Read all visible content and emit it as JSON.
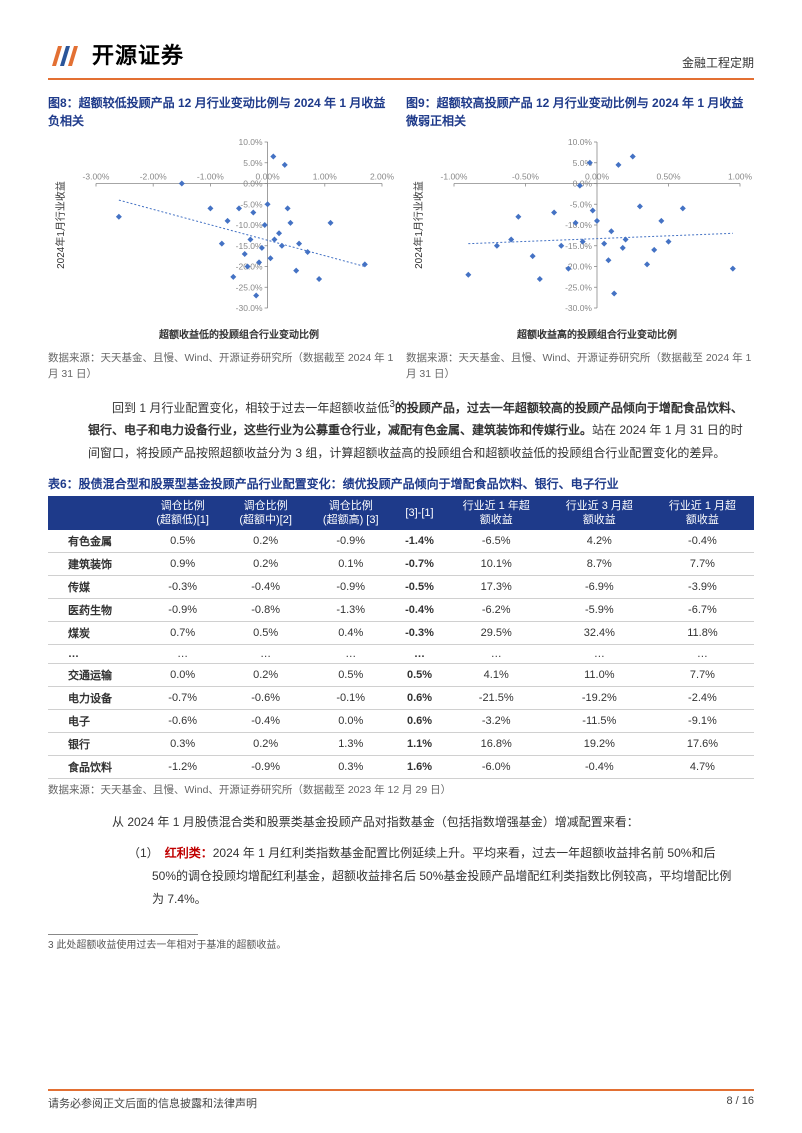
{
  "header": {
    "logo_text": "开源证券",
    "right_text": "金融工程定期"
  },
  "chart_left": {
    "title": "图8：超额较低投顾产品 12 月行业变动比例与 2024 年 1 月收益负相关",
    "type": "scatter",
    "xlabel": "超额收益低的投顾组合行业变动比例",
    "ylabel": "2024年1月行业收益",
    "xlim": [
      -3.0,
      2.0
    ],
    "ylim": [
      -30.0,
      10.0
    ],
    "xticks": [
      -3.0,
      -2.0,
      -1.0,
      0.0,
      1.0,
      2.0
    ],
    "xtick_labels": [
      "-3.00%",
      "-2.00%",
      "-1.00%",
      "0.00%",
      "1.00%",
      "2.00%"
    ],
    "yticks": [
      -30,
      -25,
      -20,
      -15,
      -10,
      -5,
      0,
      5,
      10
    ],
    "ytick_labels": [
      "-30.0%",
      "-25.0%",
      "-20.0%",
      "-15.0%",
      "-10.0%",
      "-5.0%",
      "0.0%",
      "5.0%",
      "10.0%"
    ],
    "marker_color": "#4472c4",
    "trend_color": "#4472c4",
    "trend": [
      [
        -2.6,
        -4.0
      ],
      [
        1.7,
        -20.0
      ]
    ],
    "tick_label_color": "#888888",
    "points": [
      [
        -2.6,
        -8.0
      ],
      [
        -1.5,
        0.0
      ],
      [
        -1.0,
        -6.0
      ],
      [
        -0.8,
        -14.5
      ],
      [
        -0.7,
        -9.0
      ],
      [
        -0.6,
        -22.5
      ],
      [
        -0.5,
        -6.0
      ],
      [
        -0.4,
        -17.0
      ],
      [
        -0.35,
        -20.0
      ],
      [
        -0.3,
        -13.5
      ],
      [
        -0.25,
        -7.0
      ],
      [
        -0.2,
        -27.0
      ],
      [
        -0.15,
        -19.0
      ],
      [
        -0.1,
        -15.5
      ],
      [
        -0.05,
        -10.0
      ],
      [
        0.0,
        -5.0
      ],
      [
        0.05,
        -18.0
      ],
      [
        0.1,
        6.5
      ],
      [
        0.12,
        -13.5
      ],
      [
        0.2,
        -12.0
      ],
      [
        0.25,
        -15.0
      ],
      [
        0.3,
        4.5
      ],
      [
        0.35,
        -6.0
      ],
      [
        0.4,
        -9.5
      ],
      [
        0.5,
        -21.0
      ],
      [
        0.55,
        -14.5
      ],
      [
        0.7,
        -16.5
      ],
      [
        0.9,
        -23.0
      ],
      [
        1.1,
        -9.5
      ],
      [
        1.7,
        -19.5
      ]
    ],
    "source": "数据来源：天天基金、且慢、Wind、开源证券研究所（数据截至 2024 年 1 月 31 日）"
  },
  "chart_right": {
    "title": "图9：超额较高投顾产品 12 月行业变动比例与 2024 年 1 月收益微弱正相关",
    "type": "scatter",
    "xlabel": "超额收益高的投顾组合行业变动比例",
    "ylabel": "2024年1月行业收益",
    "xlim": [
      -1.0,
      1.0
    ],
    "ylim": [
      -30.0,
      10.0
    ],
    "xticks": [
      -1.0,
      -0.5,
      0.0,
      0.5,
      1.0
    ],
    "xtick_labels": [
      "-1.00%",
      "-0.50%",
      "0.00%",
      "0.50%",
      "1.00%"
    ],
    "yticks": [
      -30,
      -25,
      -20,
      -15,
      -10,
      -5,
      0,
      5,
      10
    ],
    "ytick_labels": [
      "-30.0%",
      "-25.0%",
      "-20.0%",
      "-15.0%",
      "-10.0%",
      "-5.0%",
      "0.0%",
      "5.0%",
      "10.0%"
    ],
    "marker_color": "#4472c4",
    "trend_color": "#4472c4",
    "trend": [
      [
        -0.9,
        -14.5
      ],
      [
        0.95,
        -12.0
      ]
    ],
    "tick_label_color": "#888888",
    "points": [
      [
        -0.9,
        -22.0
      ],
      [
        -0.7,
        -15.0
      ],
      [
        -0.6,
        -13.5
      ],
      [
        -0.55,
        -8.0
      ],
      [
        -0.45,
        -17.5
      ],
      [
        -0.4,
        -23.0
      ],
      [
        -0.3,
        -7.0
      ],
      [
        -0.25,
        -15.0
      ],
      [
        -0.2,
        -20.5
      ],
      [
        -0.15,
        -9.5
      ],
      [
        -0.12,
        -0.5
      ],
      [
        -0.1,
        -14.0
      ],
      [
        -0.05,
        5.0
      ],
      [
        -0.03,
        -6.5
      ],
      [
        0.0,
        -9.0
      ],
      [
        0.05,
        -14.5
      ],
      [
        0.08,
        -18.5
      ],
      [
        0.1,
        -11.5
      ],
      [
        0.12,
        -26.5
      ],
      [
        0.15,
        4.5
      ],
      [
        0.18,
        -15.5
      ],
      [
        0.2,
        -13.5
      ],
      [
        0.25,
        6.5
      ],
      [
        0.3,
        -5.5
      ],
      [
        0.35,
        -19.5
      ],
      [
        0.4,
        -16.0
      ],
      [
        0.45,
        -9.0
      ],
      [
        0.5,
        -14.0
      ],
      [
        0.6,
        -6.0
      ],
      [
        0.95,
        -20.5
      ]
    ],
    "source": "数据来源：天天基金、且慢、Wind、开源证券研究所（数据截至 2024 年 1 月 31 日）"
  },
  "body_para_1_pre": "回到 1 月行业配置变化，相较于过去一年超额收益低",
  "body_para_1_sup": "3",
  "body_para_1_mid": "的投顾产品，过去一年超额较高的投顾产品倾向于增配食品饮料、银行、电子和电力设备行业，这些行业为公募重仓行业，减配有色金属、建筑装饰和传媒行业。",
  "body_para_1_tail": "站在 2024 年 1 月 31 日的时间窗口，将投顾产品按照超额收益分为 3 组，计算超额收益高的投顾组合和超额收益低的投顾组合行业配置变化的差异。",
  "table": {
    "title": "表6：股债混合型和股票型基金投顾产品行业配置变化：绩优投顾产品倾向于增配食品饮料、银行、电子行业",
    "header_bg": "#1e3a8a",
    "header_color": "#ffffff",
    "columns": [
      "",
      "调仓比例(超额低)[1]",
      "调仓比例(超额中)[2]",
      "调仓比例(超额高) [3]",
      "[3]-[1]",
      "行业近 1 年超额收益",
      "行业近 3 月超额收益",
      "行业近 1 月超额收益"
    ],
    "rows": [
      [
        "有色金属",
        "0.5%",
        "0.2%",
        "-0.9%",
        "-1.4%",
        "-6.5%",
        "4.2%",
        "-0.4%"
      ],
      [
        "建筑装饰",
        "0.9%",
        "0.2%",
        "0.1%",
        "-0.7%",
        "10.1%",
        "8.7%",
        "7.7%"
      ],
      [
        "传媒",
        "-0.3%",
        "-0.4%",
        "-0.9%",
        "-0.5%",
        "17.3%",
        "-6.9%",
        "-3.9%"
      ],
      [
        "医药生物",
        "-0.9%",
        "-0.8%",
        "-1.3%",
        "-0.4%",
        "-6.2%",
        "-5.9%",
        "-6.7%"
      ],
      [
        "煤炭",
        "0.7%",
        "0.5%",
        "0.4%",
        "-0.3%",
        "29.5%",
        "32.4%",
        "11.8%"
      ],
      [
        "…",
        "…",
        "…",
        "…",
        "…",
        "…",
        "…",
        "…"
      ],
      [
        "交通运输",
        "0.0%",
        "0.2%",
        "0.5%",
        "0.5%",
        "4.1%",
        "11.0%",
        "7.7%"
      ],
      [
        "电力设备",
        "-0.7%",
        "-0.6%",
        "-0.1%",
        "0.6%",
        "-21.5%",
        "-19.2%",
        "-2.4%"
      ],
      [
        "电子",
        "-0.6%",
        "-0.4%",
        "0.0%",
        "0.6%",
        "-3.2%",
        "-11.5%",
        "-9.1%"
      ],
      [
        "银行",
        "0.3%",
        "0.2%",
        "1.3%",
        "1.1%",
        "16.8%",
        "19.2%",
        "17.6%"
      ],
      [
        "食品饮料",
        "-1.2%",
        "-0.9%",
        "0.3%",
        "1.6%",
        "-6.0%",
        "-0.4%",
        "4.7%"
      ]
    ],
    "source": "数据来源：天天基金、且慢、Wind、开源证券研究所（数据截至 2023 年 12 月 29 日）"
  },
  "body_para_2": "从 2024 年 1 月股债混合类和股票类基金投顾产品对指数基金（包括指数增强基金）增减配置来看：",
  "list_item_1_num": "（1）",
  "list_item_1_label": "红利类：",
  "list_item_1_text": "2024 年 1 月红利类指数基金配置比例延续上升。平均来看，过去一年超额收益排名前 50%和后 50%的调仓投顾均增配红利基金，超额收益排名后 50%基金投顾产品增配红利类指数比例较高，平均增配比例为 7.4%。",
  "footnote": "3 此处超额收益使用过去一年相对于基准的超额收益。",
  "footer": {
    "left": "请务必参阅正文后面的信息披露和法律声明",
    "right": "8 / 16"
  }
}
